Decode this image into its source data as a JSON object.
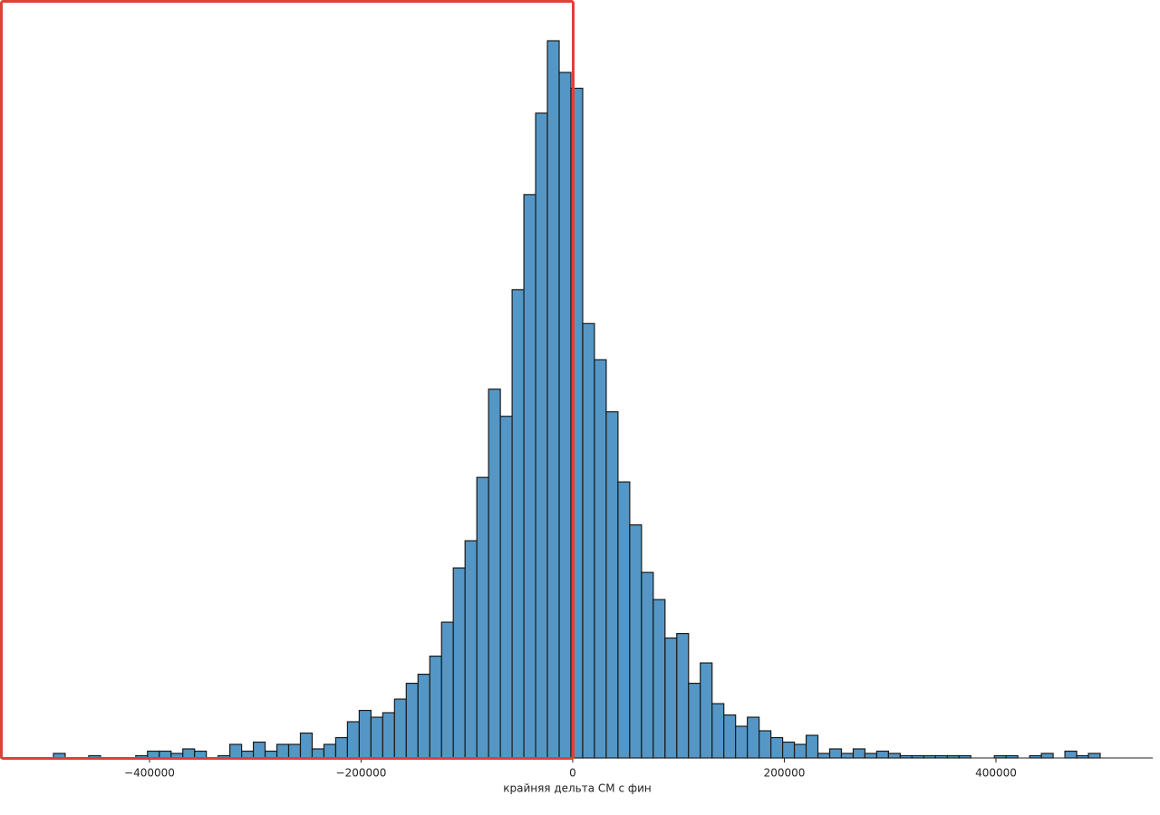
{
  "chart_data": {
    "type": "histogram",
    "x_label": "крайняя дельта СМ с фин",
    "color": "#5497c6",
    "edge_color": "#1a1a1a",
    "bins": [
      -490800,
      -479684,
      -468568,
      -457452,
      -446336,
      -435220,
      -424104,
      -412988,
      -401872,
      -390756,
      -379640,
      -368524,
      -357408,
      -346292,
      -335176,
      -324060,
      -312944,
      -301828,
      -290712,
      -279596,
      -268480,
      -257364,
      -246248,
      -235132,
      -224016,
      -212900,
      -201784,
      -190668,
      -179552,
      -168436,
      -157320,
      -146204,
      -135088,
      -123972,
      -112856,
      -101740,
      -90624,
      -79508,
      -68392,
      -57276,
      -46160,
      -35044,
      -23928,
      -12812,
      -1696,
      9420,
      20536,
      31652,
      42768,
      53884,
      65000,
      76116,
      87232,
      98348,
      109464,
      120580,
      131696,
      142812,
      153928,
      165044,
      176160,
      187276,
      198392,
      209508,
      220624,
      231740,
      242856,
      253972,
      265088,
      276204,
      287320,
      298436,
      309552,
      320668,
      331784,
      342900,
      354016,
      365132,
      376248,
      387364,
      398480,
      409596,
      420712,
      431828,
      442944,
      454060,
      465176,
      476292,
      487408,
      498524
    ],
    "counts": [
      2,
      0,
      0,
      1,
      0,
      0,
      0,
      1,
      3,
      3,
      2,
      4,
      3,
      0,
      1,
      6,
      3,
      7,
      3,
      6,
      6,
      11,
      4,
      6,
      9,
      16,
      21,
      18,
      20,
      26,
      33,
      37,
      45,
      60,
      84,
      96,
      124,
      163,
      151,
      207,
      249,
      285,
      317,
      303,
      296,
      192,
      176,
      153,
      122,
      103,
      82,
      70,
      53,
      55,
      33,
      42,
      24,
      19,
      14,
      18,
      12,
      9,
      7,
      6,
      10,
      2,
      4,
      2,
      4,
      2,
      3,
      2,
      1,
      1,
      1,
      1,
      1,
      1,
      0,
      0,
      1,
      1,
      0,
      1,
      2,
      0,
      3,
      1,
      2
    ],
    "xlim": [
      -541300,
      548200
    ],
    "ylim": [
      0,
      317
    ],
    "xticks": [
      {
        "value": -400000,
        "label": "−400000"
      },
      {
        "value": -200000,
        "label": "−200000"
      },
      0,
      200000,
      400000
    ]
  }
}
